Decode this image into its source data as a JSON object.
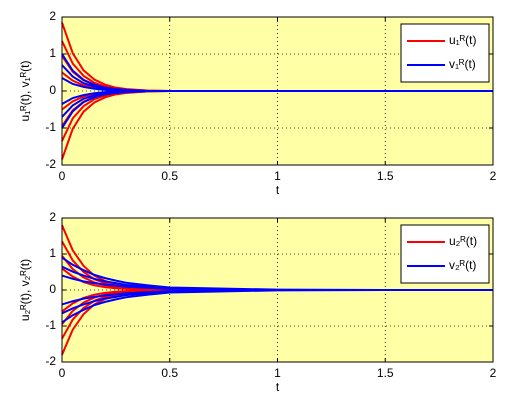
{
  "chart_data": [
    {
      "type": "line",
      "xlabel": "t",
      "ylabel": "u₁ᴿ(t), v₁ᴿ(t)",
      "xlim": [
        0,
        2
      ],
      "ylim": [
        -2,
        2
      ],
      "xticks": [
        0,
        0.5,
        1,
        1.5,
        2
      ],
      "yticks": [
        -2,
        -1,
        0,
        1,
        2
      ],
      "grid": true,
      "legend": "northeast",
      "background": "#ffffa6",
      "x": [
        0,
        0.05,
        0.1,
        0.15,
        0.2,
        0.25,
        0.3,
        0.4,
        0.5,
        1,
        1.5,
        2
      ],
      "series": [
        {
          "name": "u₁ᴿ(t)",
          "color": "#ff0000",
          "values": [
            [
              1.85,
              1.02,
              0.56,
              0.31,
              0.17,
              0.09,
              0.05,
              0.01,
              0,
              0,
              0,
              0
            ],
            [
              1.35,
              0.74,
              0.41,
              0.22,
              0.12,
              0.07,
              0.04,
              0.01,
              0,
              0,
              0,
              0
            ],
            [
              0.95,
              0.52,
              0.29,
              0.16,
              0.09,
              0.05,
              0.03,
              0,
              0,
              0,
              0,
              0
            ],
            [
              0.5,
              0.28,
              0.15,
              0.08,
              0.05,
              0.03,
              0.01,
              0,
              0,
              0,
              0,
              0
            ],
            [
              -0.5,
              -0.28,
              -0.15,
              -0.08,
              -0.05,
              -0.03,
              -0.01,
              0,
              0,
              0,
              0,
              0
            ],
            [
              -0.95,
              -0.52,
              -0.29,
              -0.16,
              -0.09,
              -0.05,
              -0.03,
              0,
              0,
              0,
              0,
              0
            ],
            [
              -1.35,
              -0.74,
              -0.41,
              -0.22,
              -0.12,
              -0.07,
              -0.04,
              -0.01,
              0,
              0,
              0,
              0
            ],
            [
              -1.85,
              -1.02,
              -0.56,
              -0.31,
              -0.17,
              -0.09,
              -0.05,
              -0.01,
              0,
              0,
              0,
              0
            ]
          ]
        },
        {
          "name": "v₁ᴿ(t)",
          "color": "#0000ff",
          "values": [
            [
              1.0,
              0.55,
              0.3,
              0.17,
              0.09,
              0.05,
              0.03,
              0,
              0,
              0,
              0,
              0
            ],
            [
              0.7,
              0.39,
              0.21,
              0.12,
              0.06,
              0.03,
              0.02,
              0,
              0,
              0,
              0,
              0
            ],
            [
              0.35,
              0.19,
              0.11,
              0.06,
              0.03,
              0.02,
              0.01,
              0,
              0,
              0,
              0,
              0
            ],
            [
              -0.35,
              -0.19,
              -0.11,
              -0.06,
              -0.03,
              -0.02,
              -0.01,
              0,
              0,
              0,
              0,
              0
            ],
            [
              -0.7,
              -0.39,
              -0.21,
              -0.12,
              -0.06,
              -0.03,
              -0.02,
              0,
              0,
              0,
              0,
              0
            ],
            [
              -1.0,
              -0.55,
              -0.3,
              -0.17,
              -0.09,
              -0.05,
              -0.03,
              0,
              0,
              0,
              0,
              0
            ]
          ]
        }
      ]
    },
    {
      "type": "line",
      "xlabel": "t",
      "ylabel": "u₂ᴿ(t), v₂ᴿ(t)",
      "xlim": [
        0,
        2
      ],
      "ylim": [
        -2,
        2
      ],
      "xticks": [
        0,
        0.5,
        1,
        1.5,
        2
      ],
      "yticks": [
        -2,
        -1,
        0,
        1,
        2
      ],
      "grid": true,
      "legend": "northeast",
      "background": "#ffffa6",
      "x": [
        0,
        0.05,
        0.1,
        0.15,
        0.2,
        0.25,
        0.3,
        0.4,
        0.5,
        1,
        1.5,
        2
      ],
      "series": [
        {
          "name": "u₂ᴿ(t)",
          "color": "#ff0000",
          "values": [
            [
              1.8,
              1.1,
              0.67,
              0.4,
              0.25,
              0.14,
              0.09,
              0.04,
              0.02,
              0,
              0,
              0
            ],
            [
              1.35,
              0.82,
              0.5,
              0.3,
              0.19,
              0.11,
              0.07,
              0.03,
              0.01,
              0,
              0,
              0
            ],
            [
              0.95,
              0.58,
              0.35,
              0.21,
              0.13,
              0.08,
              0.05,
              0.02,
              0.01,
              0,
              0,
              0
            ],
            [
              0.6,
              0.37,
              0.22,
              0.13,
              0.08,
              0.05,
              0.03,
              0.01,
              0.01,
              0,
              0,
              0
            ],
            [
              -0.6,
              -0.37,
              -0.22,
              -0.13,
              -0.08,
              -0.05,
              -0.03,
              -0.01,
              -0.01,
              0,
              0,
              0
            ],
            [
              -0.95,
              -0.58,
              -0.35,
              -0.21,
              -0.13,
              -0.08,
              -0.05,
              -0.02,
              -0.01,
              0,
              0,
              0
            ],
            [
              -1.35,
              -0.82,
              -0.5,
              -0.3,
              -0.19,
              -0.11,
              -0.07,
              -0.03,
              -0.01,
              0,
              0,
              0
            ],
            [
              -1.8,
              -1.1,
              -0.67,
              -0.4,
              -0.25,
              -0.14,
              -0.09,
              -0.04,
              -0.02,
              0,
              0,
              0
            ]
          ]
        },
        {
          "name": "v₂ᴿ(t)",
          "color": "#0000ff",
          "values": [
            [
              0.9,
              0.7,
              0.55,
              0.42,
              0.33,
              0.26,
              0.2,
              0.13,
              0.07,
              0.01,
              0,
              0
            ],
            [
              0.65,
              0.51,
              0.4,
              0.31,
              0.24,
              0.19,
              0.14,
              0.09,
              0.05,
              0,
              0,
              0
            ],
            [
              0.4,
              0.31,
              0.24,
              0.19,
              0.15,
              0.12,
              0.09,
              0.06,
              0.03,
              0,
              0,
              0
            ],
            [
              -0.4,
              -0.31,
              -0.24,
              -0.19,
              -0.15,
              -0.12,
              -0.09,
              -0.06,
              -0.03,
              0,
              0,
              0
            ],
            [
              -0.65,
              -0.51,
              -0.4,
              -0.31,
              -0.24,
              -0.19,
              -0.14,
              -0.09,
              -0.05,
              0,
              0,
              0
            ],
            [
              -0.9,
              -0.7,
              -0.55,
              -0.42,
              -0.33,
              -0.26,
              -0.2,
              -0.13,
              -0.07,
              -0.01,
              0,
              0
            ]
          ]
        }
      ]
    }
  ]
}
